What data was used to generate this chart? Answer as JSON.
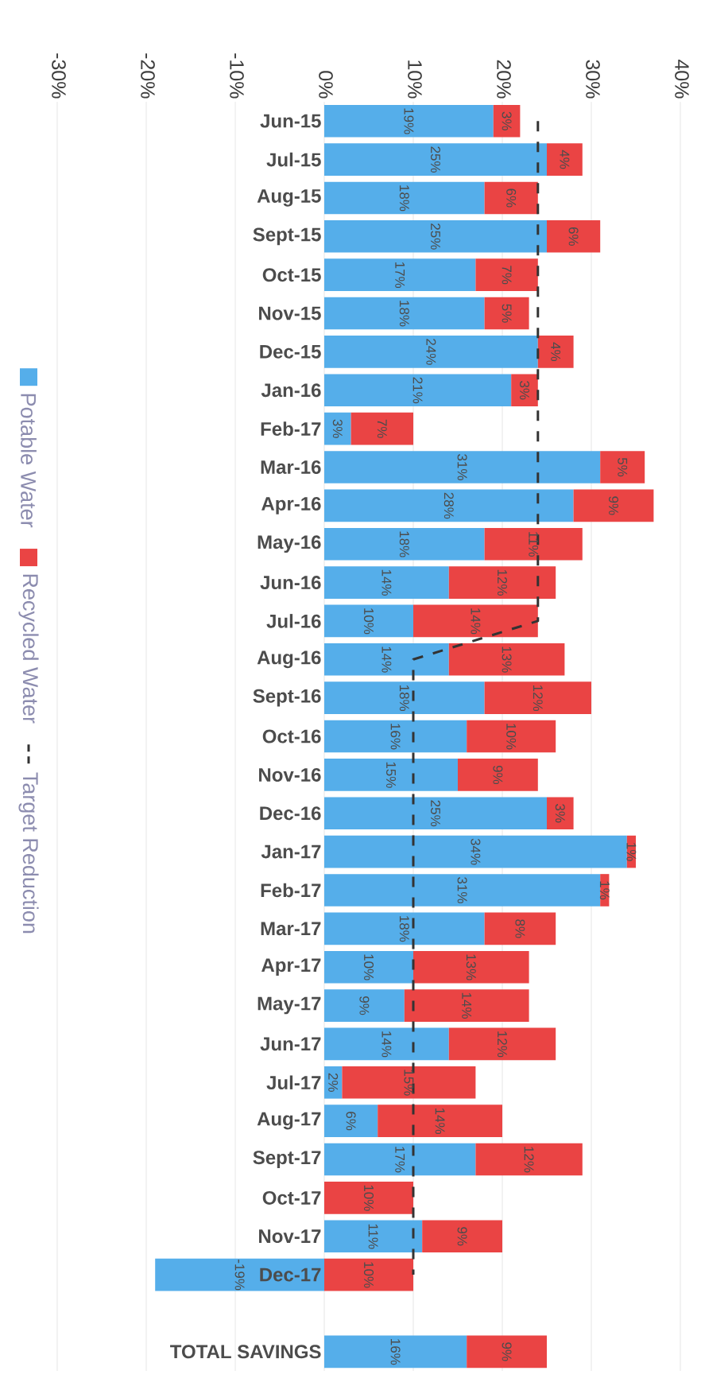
{
  "chart_data": {
    "type": "bar",
    "orientation": "horizontal",
    "stacked": true,
    "categories": [
      "Jun-15",
      "Jul-15",
      "Aug-15",
      "Sept-15",
      "Oct-15",
      "Nov-15",
      "Dec-15",
      "Jan-16",
      "Feb-17",
      "Mar-16",
      "Apr-16",
      "May-16",
      "Jun-16",
      "Jul-16",
      "Aug-16",
      "Sept-16",
      "Oct-16",
      "Nov-16",
      "Dec-16",
      "Jan-17",
      "Feb-17",
      "Mar-17",
      "Apr-17",
      "May-17",
      "Jun-17",
      "Jul-17",
      "Aug-17",
      "Sept-17",
      "Oct-17",
      "Nov-17",
      "Dec-17",
      null,
      "TOTAL SAVINGS"
    ],
    "series": [
      {
        "name": "Potable Water",
        "color": "#55aeea",
        "values": [
          19,
          25,
          18,
          25,
          17,
          18,
          24,
          21,
          3,
          31,
          28,
          18,
          14,
          10,
          14,
          18,
          16,
          15,
          25,
          34,
          31,
          18,
          10,
          9,
          14,
          2,
          6,
          17,
          null,
          11,
          -19,
          null,
          16
        ],
        "value_labels": [
          "19%",
          "25%",
          "18%",
          "25%",
          "17%",
          "18%",
          "24%",
          "21%",
          "3%",
          "31%",
          "28%",
          "18%",
          "14%",
          "10%",
          "14%",
          "18%",
          "16%",
          "15%",
          "25%",
          "34%",
          "31%",
          "18%",
          "10%",
          "9%",
          "14%",
          "2%",
          "6%",
          "17%",
          null,
          "11%",
          "-19%",
          null,
          "16%"
        ]
      },
      {
        "name": "Recycled Water",
        "color": "#ea4444",
        "values": [
          3,
          4,
          6,
          6,
          7,
          5,
          4,
          3,
          7,
          5,
          9,
          11,
          12,
          14,
          13,
          12,
          10,
          9,
          3,
          1,
          1,
          8,
          13,
          14,
          12,
          15,
          14,
          12,
          10,
          9,
          10,
          null,
          9
        ],
        "value_labels": [
          "3%",
          "4%",
          "6%",
          "6%",
          "7%",
          "5%",
          "4%",
          "3%",
          "7%",
          "5%",
          "9%",
          "11%",
          "12%",
          "14%",
          "13%",
          "12%",
          "10%",
          "9%",
          "3%",
          "1%",
          "1%",
          "8%",
          "13%",
          "14%",
          "12%",
          "15%",
          "14%",
          "12%",
          "10%",
          "9%",
          "10%",
          null,
          "9%"
        ]
      },
      {
        "name": "Target Reduction",
        "type": "line",
        "color": "#333333",
        "line_style": "dashed",
        "values": [
          24,
          24,
          24,
          24,
          24,
          24,
          24,
          24,
          24,
          24,
          24,
          24,
          24,
          24,
          10,
          10,
          10,
          10,
          10,
          10,
          10,
          10,
          10,
          10,
          10,
          10,
          10,
          10,
          10,
          10,
          10,
          null,
          null
        ]
      }
    ],
    "xlim": [
      -30,
      40
    ],
    "xticks": [
      {
        "value": -30,
        "label": "-30%"
      },
      {
        "value": -20,
        "label": "-20%"
      },
      {
        "value": -10,
        "label": "-10%"
      },
      {
        "value": 0,
        "label": "0%"
      },
      {
        "value": 10,
        "label": "10%"
      },
      {
        "value": 20,
        "label": "20%"
      },
      {
        "value": 30,
        "label": "30%"
      },
      {
        "value": 40,
        "label": "40%"
      }
    ],
    "grid": "x",
    "legend": "left"
  }
}
